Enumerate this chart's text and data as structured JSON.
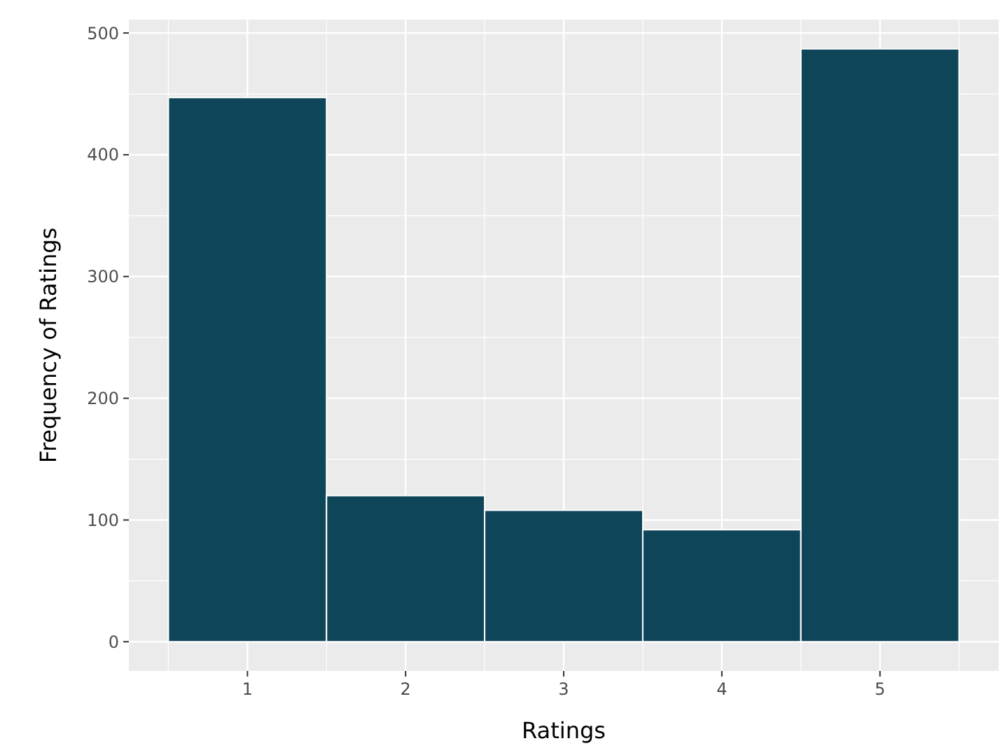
{
  "chart_data": {
    "type": "histogram",
    "xlabel": "Ratings",
    "ylabel": "Frequency of Ratings",
    "bins": [
      0.5,
      1.5,
      2.5,
      3.5,
      4.5,
      5.5
    ],
    "values": [
      447,
      120,
      108,
      92,
      487
    ],
    "color": "#0f4559",
    "xlim": [
      0.25,
      5.75
    ],
    "xticks": [
      1,
      2,
      3,
      4,
      5
    ],
    "ylim": [
      -24,
      511
    ],
    "yticks": [
      0,
      100,
      200,
      300,
      400,
      500
    ],
    "grid": true
  }
}
